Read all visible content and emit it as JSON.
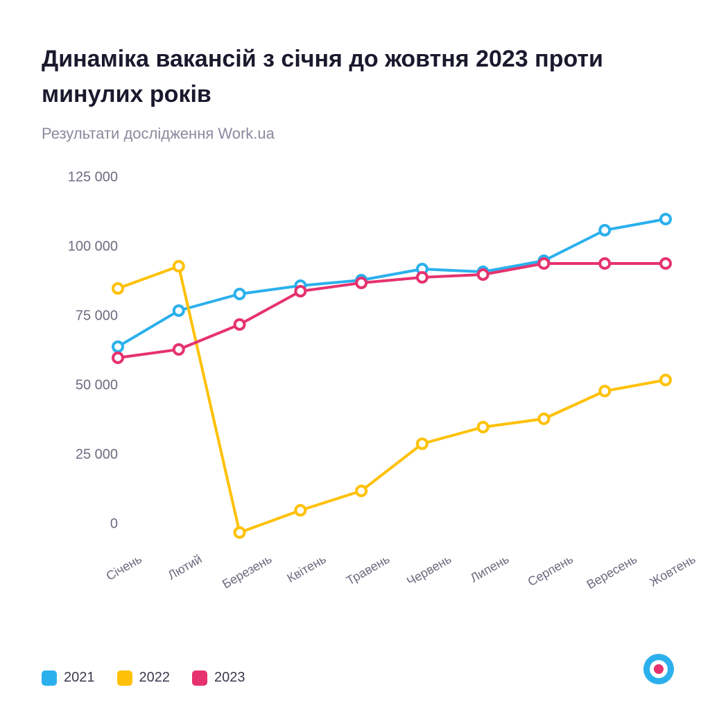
{
  "title": "Динаміка вакансій з січня до жовтня 2023 проти минулих років",
  "subtitle": "Результати дослідження Work.ua",
  "chart": {
    "type": "line",
    "background_color": "#ffffff",
    "y_axis": {
      "min": -5000,
      "max": 125000,
      "ticks": [
        0,
        25000,
        50000,
        75000,
        100000,
        125000
      ],
      "tick_labels": [
        "0",
        "25 000",
        "50 000",
        "75 000",
        "100 000",
        "125 000"
      ],
      "label_fontsize": 20,
      "label_color": "#6b6b80"
    },
    "x_axis": {
      "categories": [
        "Січень",
        "Лютий",
        "Березень",
        "Квітень",
        "Травень",
        "Червень",
        "Липень",
        "Серпень",
        "Вересень",
        "Жовтень"
      ],
      "label_fontsize": 18,
      "label_color": "#6b6b80",
      "rotation": -30
    },
    "series": [
      {
        "name": "2021",
        "color": "#2bb0ed",
        "values": [
          64000,
          77000,
          83000,
          86000,
          88000,
          92000,
          91000,
          95000,
          106000,
          110000
        ],
        "line_width": 4,
        "marker": "circle",
        "marker_size": 7,
        "marker_fill": "#ffffff",
        "marker_stroke_width": 4
      },
      {
        "name": "2022",
        "color": "#ffc107",
        "values": [
          85000,
          93000,
          -3000,
          5000,
          12000,
          29000,
          35000,
          38000,
          48000,
          52000
        ],
        "line_width": 4,
        "marker": "circle",
        "marker_size": 7,
        "marker_fill": "#ffffff",
        "marker_stroke_width": 4
      },
      {
        "name": "2023",
        "color": "#e6326e",
        "values": [
          60000,
          63000,
          72000,
          84000,
          87000,
          89000,
          90000,
          94000,
          94000,
          94000
        ],
        "line_width": 4,
        "marker": "circle",
        "marker_size": 7,
        "marker_fill": "#ffffff",
        "marker_stroke_width": 4
      }
    ]
  },
  "legend": {
    "items": [
      {
        "label": "2021",
        "color": "#2bb0ed"
      },
      {
        "label": "2022",
        "color": "#ffc107"
      },
      {
        "label": "2023",
        "color": "#e6326e"
      }
    ],
    "fontsize": 20
  },
  "logo": {
    "outer_color": "#2bb0ed",
    "inner_color": "#e6326e",
    "bg_color": "#ffffff"
  }
}
